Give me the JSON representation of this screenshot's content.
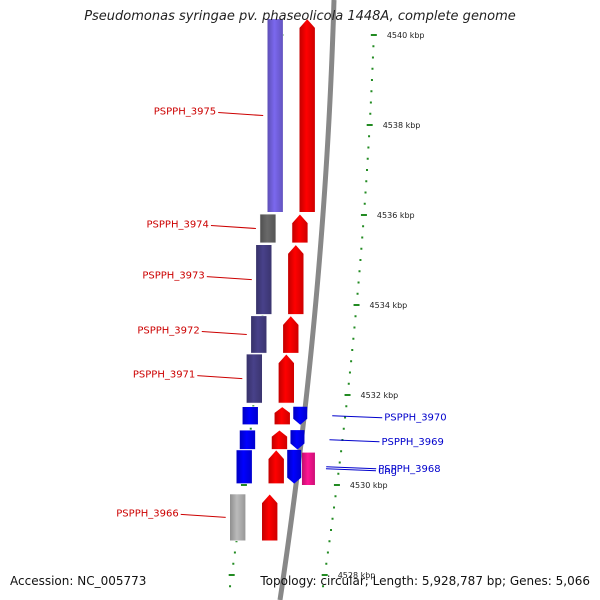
{
  "title": "Pseudomonas syringae pv. phaseolicola 1448A, complete genome",
  "footer": {
    "accession": "Accession: NC_005773",
    "topology": "Topology: circular; Length: 5,928,787 bp; Genes: 5,066"
  },
  "scale": {
    "labels": [
      {
        "text": "4540 kbp",
        "kbp": 4540
      },
      {
        "text": "4538 kbp",
        "kbp": 4538
      },
      {
        "text": "4536 kbp",
        "kbp": 4536
      },
      {
        "text": "4534 kbp",
        "kbp": 4534
      },
      {
        "text": "4532 kbp",
        "kbp": 4532
      },
      {
        "text": "4530 kbp",
        "kbp": 4530
      },
      {
        "text": "4528 kbp",
        "kbp": 4528
      }
    ]
  },
  "genes": [
    {
      "name": "PSPPH_3975",
      "start_kbp": 4536.06,
      "end_kbp": 4540.36,
      "strand": "reverse",
      "label_side": "left",
      "label_color": "#cc0000",
      "bar_color": "#7b68ee"
    },
    {
      "name": "PSPPH_3974",
      "start_kbp": 4535.38,
      "end_kbp": 4536.02,
      "strand": "reverse",
      "label_side": "left",
      "label_color": "#cc0000",
      "bar_color": "#696969"
    },
    {
      "name": "PSPPH_3973",
      "start_kbp": 4533.79,
      "end_kbp": 4535.34,
      "strand": "reverse",
      "label_side": "left",
      "label_color": "#cc0000",
      "bar_color": "#48418a"
    },
    {
      "name": "PSPPH_3972",
      "start_kbp": 4532.93,
      "end_kbp": 4533.76,
      "strand": "reverse",
      "label_side": "left",
      "label_color": "#cc0000",
      "bar_color": "#48418a"
    },
    {
      "name": "PSPPH_3971",
      "start_kbp": 4531.82,
      "end_kbp": 4532.91,
      "strand": "reverse",
      "label_side": "left",
      "label_color": "#cc0000",
      "bar_color": "#48418a"
    },
    {
      "name": "PSPPH_3970",
      "start_kbp": 4531.34,
      "end_kbp": 4531.74,
      "strand": "reverse",
      "label_side": "right",
      "label_color": "#0000cc",
      "bar_color": "#0000ff"
    },
    {
      "name": "PSPPH_3969",
      "start_kbp": 4530.79,
      "end_kbp": 4531.22,
      "strand": "reverse",
      "label_side": "right",
      "label_color": "#0000cc",
      "bar_color": "#0000ff"
    },
    {
      "name": "PSPPH_3968",
      "start_kbp": 4530.03,
      "end_kbp": 4530.78,
      "strand": "reverse",
      "label_side": "right",
      "label_color": "#0000cc",
      "bar_color": "#0000ff"
    },
    {
      "name": "ung",
      "start_kbp": 4530.0,
      "end_kbp": 4530.72,
      "strand": "forward",
      "label_side": "right",
      "label_color": "#0000cc",
      "bar_color": "#ff1493"
    },
    {
      "name": "PSPPH_3966",
      "start_kbp": 4528.76,
      "end_kbp": 4529.8,
      "strand": "reverse",
      "label_side": "left",
      "label_color": "#cc0000",
      "bar_color": "#bbbbbb"
    }
  ],
  "colors": {
    "forward_feature": "#ff0000",
    "backbone": "#888888",
    "tick": "#228b22",
    "reverse_label": "#cc0000",
    "forward_label": "#0000cc"
  }
}
